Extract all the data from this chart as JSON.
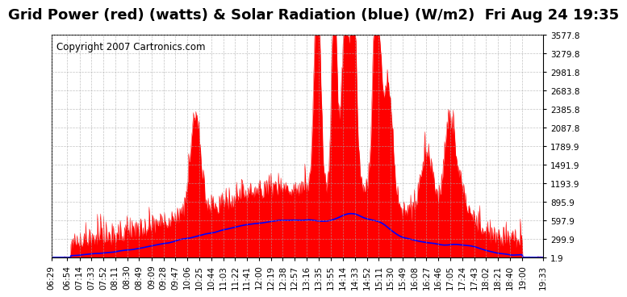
{
  "title": "Grid Power (red) (watts) & Solar Radiation (blue) (W/m2)  Fri Aug 24 19:35",
  "copyright": "Copyright 2007 Cartronics.com",
  "bg_color": "#ffffff",
  "plot_bg_color": "#ffffff",
  "grid_color": "#aaaaaa",
  "yticks": [
    1.9,
    299.9,
    597.9,
    895.9,
    1193.9,
    1491.9,
    1789.9,
    2087.8,
    2385.8,
    2683.8,
    2981.8,
    3279.8,
    3577.8
  ],
  "ymin": 1.9,
  "ymax": 3577.8,
  "xtick_labels": [
    "06:29",
    "06:54",
    "07:14",
    "07:33",
    "07:52",
    "08:11",
    "08:30",
    "08:49",
    "09:09",
    "09:28",
    "09:47",
    "10:06",
    "10:25",
    "10:44",
    "11:03",
    "11:22",
    "11:41",
    "12:00",
    "12:19",
    "12:38",
    "12:57",
    "13:16",
    "13:35",
    "13:55",
    "14:14",
    "14:33",
    "14:52",
    "15:11",
    "15:30",
    "15:49",
    "16:08",
    "16:27",
    "16:46",
    "17:05",
    "17:24",
    "17:43",
    "18:02",
    "18:21",
    "18:40",
    "19:00",
    "19:33"
  ],
  "red_color": "#ff0000",
  "blue_color": "#0000ff",
  "title_fontsize": 13,
  "copyright_fontsize": 8.5,
  "tick_fontsize": 7.5
}
